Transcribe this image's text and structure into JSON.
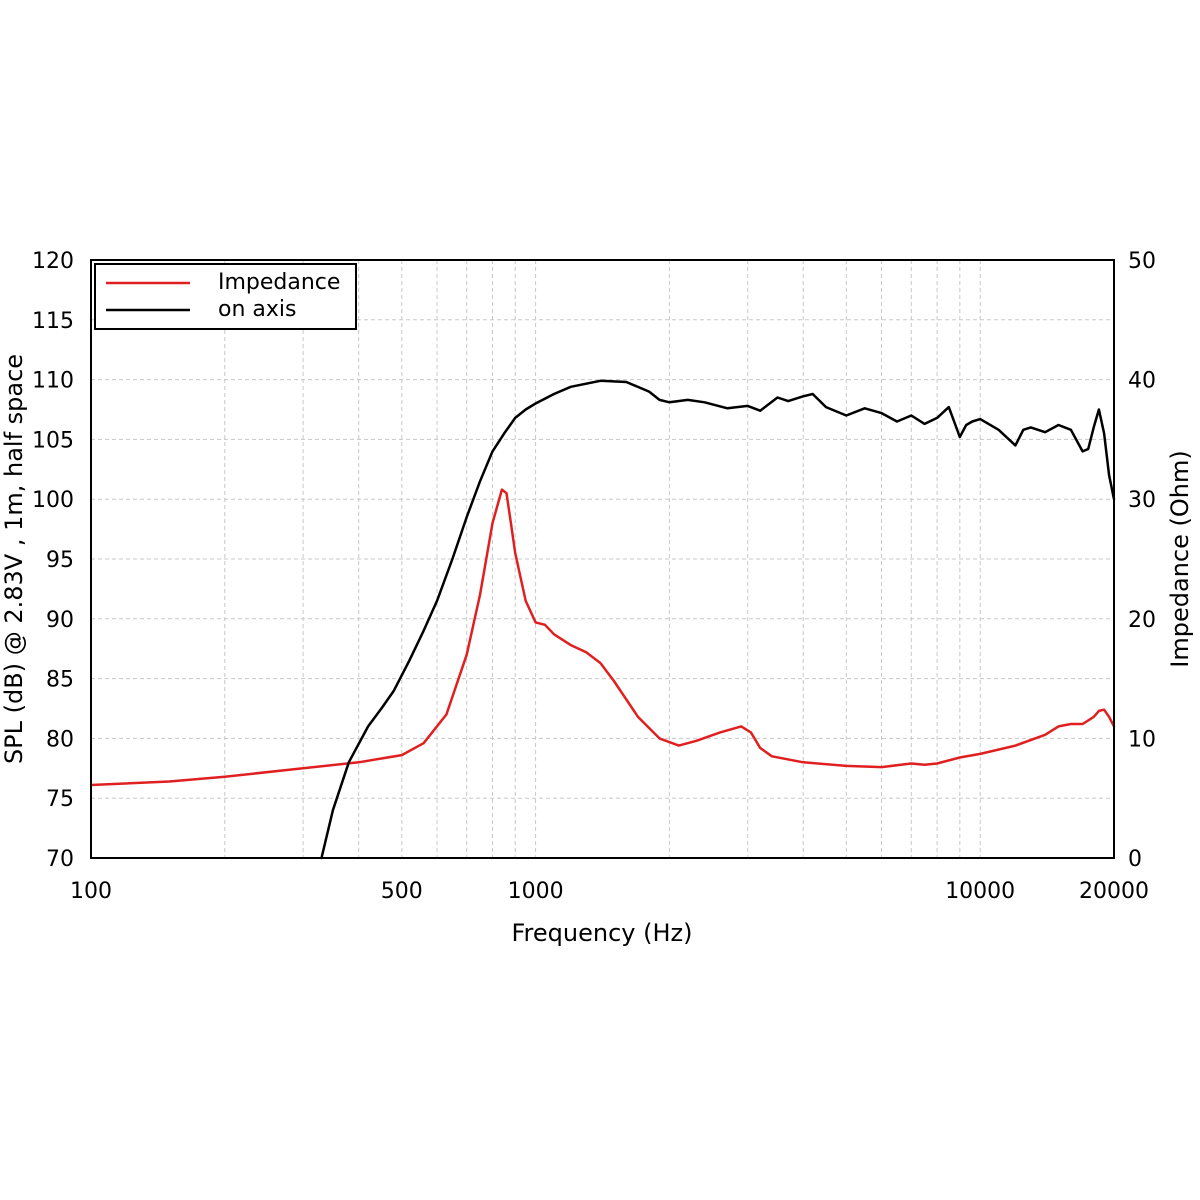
{
  "chart_data": {
    "type": "line",
    "title": "",
    "xlabel": "Frequency (Hz)",
    "ylabel_left": "SPL (dB) @ 2.83V , 1m, half space",
    "ylabel_right": "Impedance (Ohm)",
    "x_scale": "log",
    "xlim": [
      100,
      20000
    ],
    "ylim_left": [
      70,
      120
    ],
    "ylim_right": [
      0,
      50
    ],
    "x_tick_labels": [
      "100",
      "500",
      "1000",
      "10000",
      "20000"
    ],
    "y_left_tick_labels": [
      "70",
      "75",
      "80",
      "85",
      "90",
      "95",
      "100",
      "105",
      "110",
      "115",
      "120"
    ],
    "y_right_tick_labels": [
      "0",
      "10",
      "20",
      "30",
      "40",
      "50"
    ],
    "grid": true,
    "legend_position": "top-left",
    "series": [
      {
        "name": "Impedance",
        "axis": "right",
        "color": "#e02020",
        "x": [
          100,
          150,
          200,
          300,
          400,
          500,
          560,
          630,
          700,
          750,
          800,
          840,
          860,
          880,
          900,
          950,
          1000,
          1050,
          1100,
          1200,
          1300,
          1400,
          1500,
          1700,
          1900,
          2100,
          2300,
          2600,
          2900,
          3050,
          3200,
          3400,
          4000,
          5000,
          6000,
          7000,
          7500,
          8000,
          9000,
          10000,
          12000,
          14000,
          15000,
          16000,
          17000,
          18000,
          18500,
          19000,
          19500,
          20000
        ],
        "values": [
          6.1,
          6.4,
          6.8,
          7.5,
          8.0,
          8.6,
          9.6,
          12.0,
          17.0,
          22.0,
          28.0,
          30.8,
          30.5,
          28.0,
          25.5,
          21.5,
          19.7,
          19.5,
          18.7,
          17.8,
          17.2,
          16.3,
          14.8,
          11.8,
          10.0,
          9.4,
          9.8,
          10.5,
          11.0,
          10.5,
          9.2,
          8.5,
          8.0,
          7.7,
          7.6,
          7.9,
          7.8,
          7.9,
          8.4,
          8.7,
          9.4,
          10.3,
          11.0,
          11.2,
          11.2,
          11.8,
          12.3,
          12.4,
          11.8,
          11.0
        ]
      },
      {
        "name": "on axis",
        "axis": "left",
        "color": "#000000",
        "x": [
          330,
          350,
          380,
          420,
          450,
          480,
          520,
          560,
          600,
          650,
          700,
          750,
          800,
          850,
          900,
          950,
          1000,
          1100,
          1200,
          1400,
          1600,
          1800,
          1900,
          2000,
          2200,
          2400,
          2700,
          3000,
          3200,
          3500,
          3700,
          4000,
          4200,
          4500,
          5000,
          5500,
          6000,
          6500,
          7000,
          7500,
          8000,
          8500,
          9000,
          9300,
          9600,
          10000,
          11000,
          12000,
          12500,
          13000,
          14000,
          15000,
          16000,
          17000,
          17500,
          18000,
          18500,
          19000,
          19500,
          20000
        ],
        "values": [
          70.0,
          74.0,
          78.0,
          81.0,
          82.5,
          84.0,
          86.5,
          89.0,
          91.5,
          95.0,
          98.5,
          101.5,
          104.0,
          105.5,
          106.8,
          107.5,
          108.0,
          108.8,
          109.4,
          109.9,
          109.8,
          109.0,
          108.3,
          108.1,
          108.3,
          108.1,
          107.6,
          107.8,
          107.4,
          108.5,
          108.2,
          108.6,
          108.8,
          107.7,
          107.0,
          107.6,
          107.2,
          106.5,
          107.0,
          106.3,
          106.8,
          107.7,
          105.2,
          106.2,
          106.5,
          106.7,
          105.8,
          104.5,
          105.8,
          106.0,
          105.6,
          106.2,
          105.8,
          104.0,
          104.2,
          106.0,
          107.5,
          105.5,
          102.0,
          100.0
        ]
      }
    ]
  }
}
